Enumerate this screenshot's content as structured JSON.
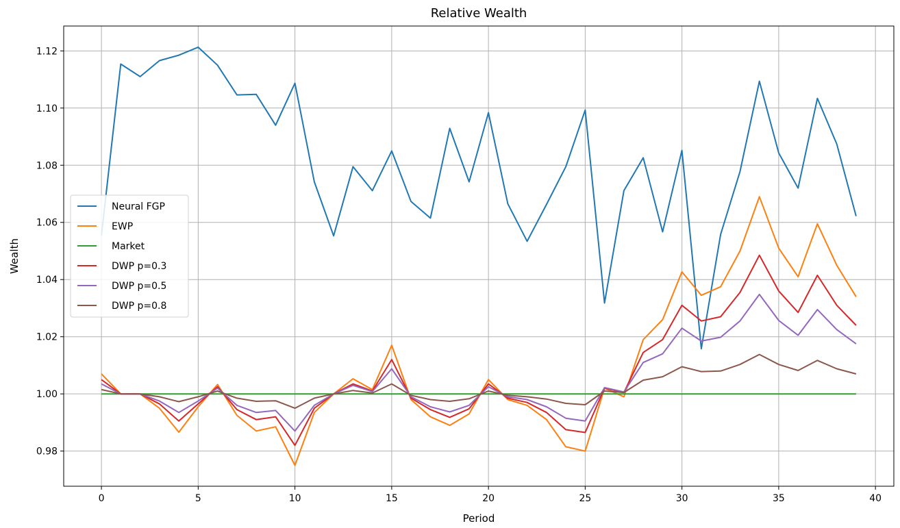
{
  "chart_data": {
    "type": "line",
    "title": "Relative Wealth",
    "xlabel": "Period",
    "ylabel": "Wealth",
    "xlim": [
      -1.95,
      40.95
    ],
    "ylim": [
      0.9677,
      1.1287
    ],
    "xticks": [
      0,
      5,
      10,
      15,
      20,
      25,
      30,
      35,
      40
    ],
    "yticks": [
      0.98,
      1.0,
      1.02,
      1.04,
      1.06,
      1.08,
      1.1,
      1.12
    ],
    "ytick_labels": [
      "0.98",
      "1.00",
      "1.02",
      "1.04",
      "1.06",
      "1.08",
      "1.10",
      "1.12"
    ],
    "grid": true,
    "legend_position": "center-left",
    "x": [
      0,
      1,
      2,
      3,
      4,
      5,
      6,
      7,
      8,
      9,
      10,
      11,
      12,
      13,
      14,
      15,
      16,
      17,
      18,
      19,
      20,
      21,
      22,
      23,
      24,
      25,
      26,
      27,
      28,
      29,
      30,
      31,
      32,
      33,
      34,
      35,
      36,
      37,
      38,
      39
    ],
    "series": [
      {
        "name": "Neural FGP",
        "color": "#1f77b4",
        "values": [
          1.0555,
          1.1154,
          1.111,
          1.1166,
          1.1185,
          1.1213,
          1.115,
          1.1046,
          1.1048,
          1.094,
          1.1087,
          1.0742,
          1.0553,
          1.0795,
          1.0711,
          1.085,
          1.0673,
          1.0615,
          1.0929,
          1.0742,
          1.0984,
          1.0665,
          1.0534,
          1.0663,
          1.0795,
          1.0993,
          1.0318,
          1.0711,
          1.0826,
          1.0567,
          1.0852,
          1.0158,
          1.0558,
          1.0778,
          1.1094,
          1.0843,
          1.072,
          1.1034,
          1.0874,
          1.0622
        ]
      },
      {
        "name": "EWP",
        "color": "#ff7f0e",
        "values": [
          1.007,
          1.0,
          1.0,
          0.995,
          0.9866,
          0.9955,
          1.0033,
          0.9925,
          0.987,
          0.9885,
          0.975,
          0.9935,
          1.0,
          1.0053,
          1.0015,
          1.017,
          0.998,
          0.992,
          0.989,
          0.993,
          1.005,
          0.998,
          0.996,
          0.991,
          0.9815,
          0.98,
          1.002,
          0.999,
          1.019,
          1.026,
          1.0427,
          1.0345,
          1.0375,
          1.05,
          1.069,
          1.051,
          1.041,
          1.0595,
          1.045,
          1.034
        ]
      },
      {
        "name": "Market",
        "color": "#2ca02c",
        "values": [
          1,
          1,
          1,
          1,
          1,
          1,
          1,
          1,
          1,
          1,
          1,
          1,
          1,
          1,
          1,
          1,
          1,
          1,
          1,
          1,
          1,
          1,
          1,
          1,
          1,
          1,
          1,
          1,
          1,
          1,
          1,
          1,
          1,
          1,
          1,
          1,
          1,
          1,
          1,
          1
        ]
      },
      {
        "name": "DWP p=0.3",
        "color": "#d62728",
        "values": [
          1.005,
          1.0,
          1.0,
          0.9965,
          0.9905,
          0.9965,
          1.0025,
          0.9945,
          0.991,
          0.992,
          0.982,
          0.995,
          1.0,
          1.0035,
          1.001,
          1.012,
          0.9985,
          0.9945,
          0.9918,
          0.9948,
          1.0035,
          0.9985,
          0.997,
          0.9935,
          0.9875,
          0.9865,
          1.002,
          1.0005,
          1.0145,
          1.019,
          1.031,
          1.0255,
          1.027,
          1.0355,
          1.0485,
          1.036,
          1.0285,
          1.0415,
          1.031,
          1.024
        ]
      },
      {
        "name": "DWP p=0.5",
        "color": "#9467bd",
        "values": [
          1.0035,
          1.0,
          1.0,
          0.9975,
          0.9935,
          0.9975,
          1.002,
          0.996,
          0.9935,
          0.9942,
          0.987,
          0.996,
          1.0,
          1.003,
          1.0008,
          1.0088,
          0.999,
          0.9955,
          0.9937,
          0.996,
          1.0025,
          0.999,
          0.998,
          0.9955,
          0.9915,
          0.9905,
          1.0022,
          1.0007,
          1.011,
          1.014,
          1.023,
          1.0185,
          1.0198,
          1.0255,
          1.0348,
          1.0257,
          1.0205,
          1.0295,
          1.0225,
          1.0175
        ]
      },
      {
        "name": "DWP p=0.8",
        "color": "#8c564b",
        "values": [
          1.0015,
          1.0,
          1.0,
          0.999,
          0.9973,
          0.999,
          1.001,
          0.9985,
          0.9974,
          0.9976,
          0.995,
          0.9985,
          1.0,
          1.0012,
          1.0003,
          1.0035,
          0.9995,
          0.998,
          0.9974,
          0.9983,
          1.001,
          0.9995,
          0.999,
          0.9982,
          0.9967,
          0.9962,
          1.001,
          1.0005,
          1.0048,
          1.006,
          1.0095,
          1.0078,
          1.008,
          1.0103,
          1.0138,
          1.0103,
          1.0082,
          1.0117,
          1.0088,
          1.007
        ]
      }
    ]
  }
}
